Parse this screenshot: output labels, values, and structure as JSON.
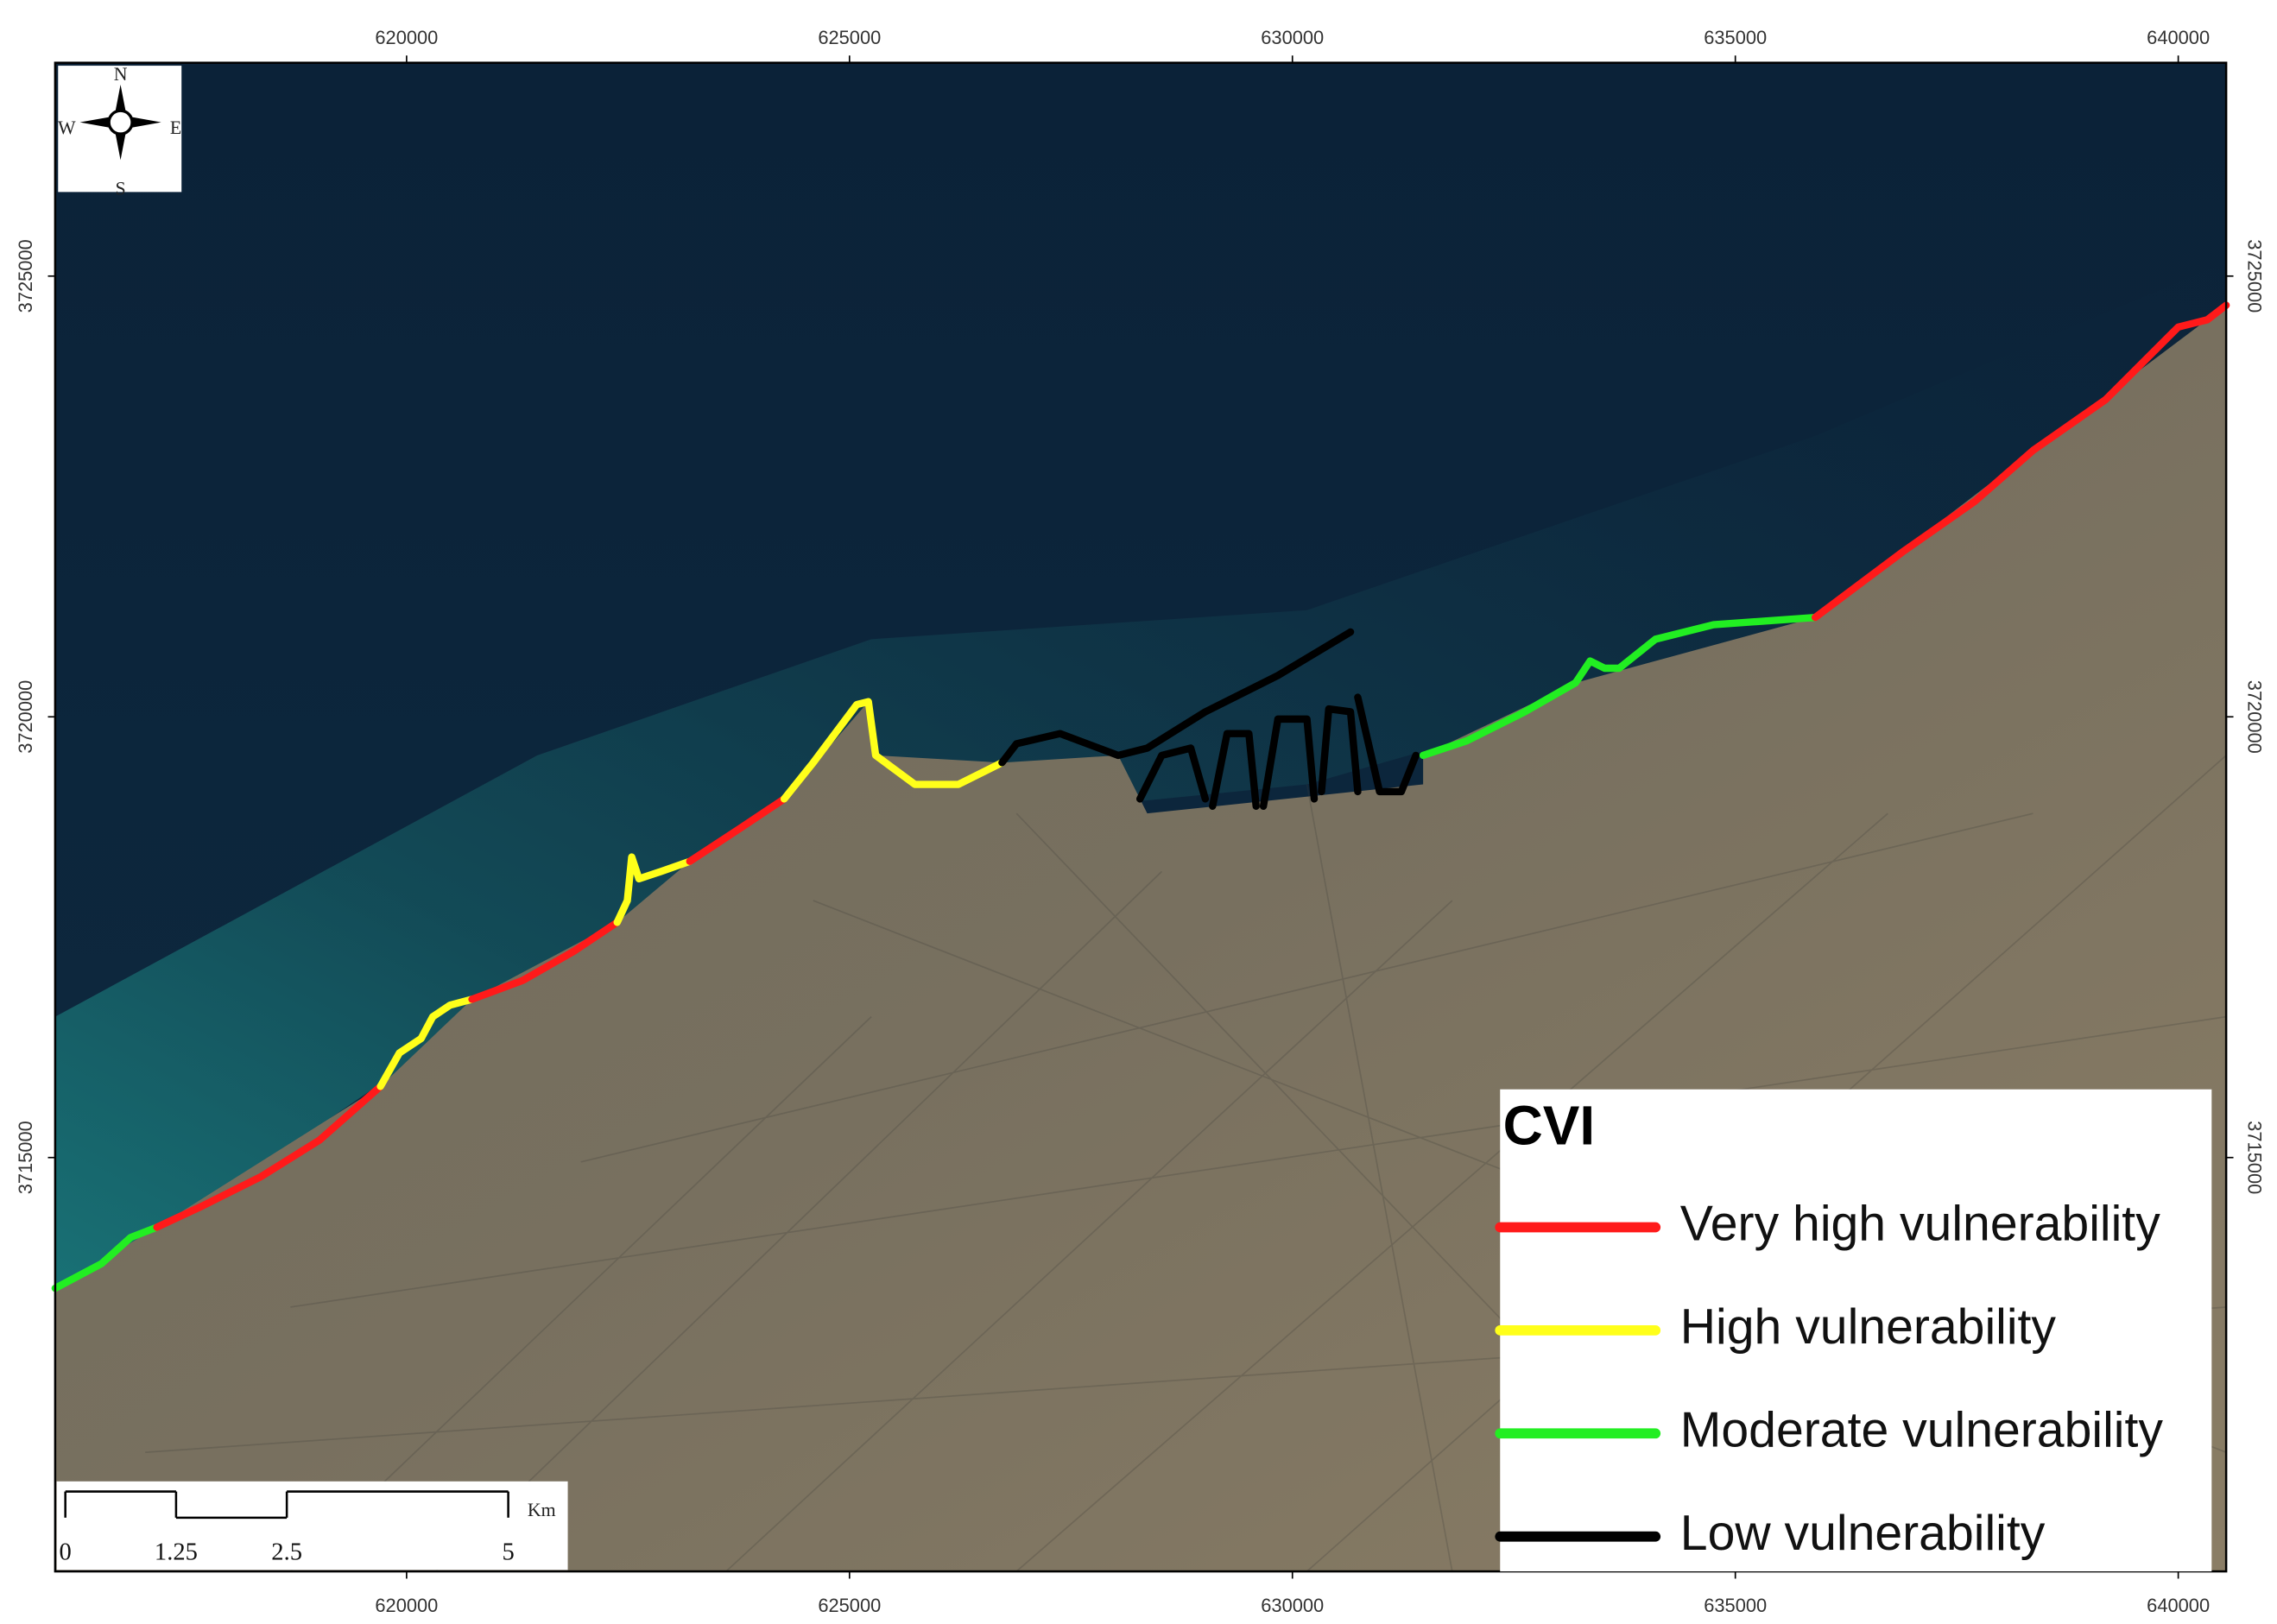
{
  "map": {
    "xlim": [
      616033,
      640541
    ],
    "ylim": [
      3710305,
      3727420
    ],
    "xticks": [
      620000,
      625000,
      630000,
      635000,
      640000
    ],
    "yticks": [
      3715000,
      3720000,
      3725000
    ],
    "compass": {
      "n": "N",
      "s": "S",
      "e": "E",
      "w": "W"
    },
    "scale_bar": {
      "ticks": [
        0,
        1.25,
        2.5,
        5
      ],
      "unit": "Km"
    },
    "legend": {
      "title": "CVI",
      "items": [
        {
          "label": "Very high vulnerability",
          "color": "#ff1a1a"
        },
        {
          "label": "High vulnerability",
          "color": "#ffff1a"
        },
        {
          "label": "Moderate vulnerability",
          "color": "#22ee22"
        },
        {
          "label": "Low vulnerability",
          "color": "#000000"
        }
      ]
    }
  }
}
